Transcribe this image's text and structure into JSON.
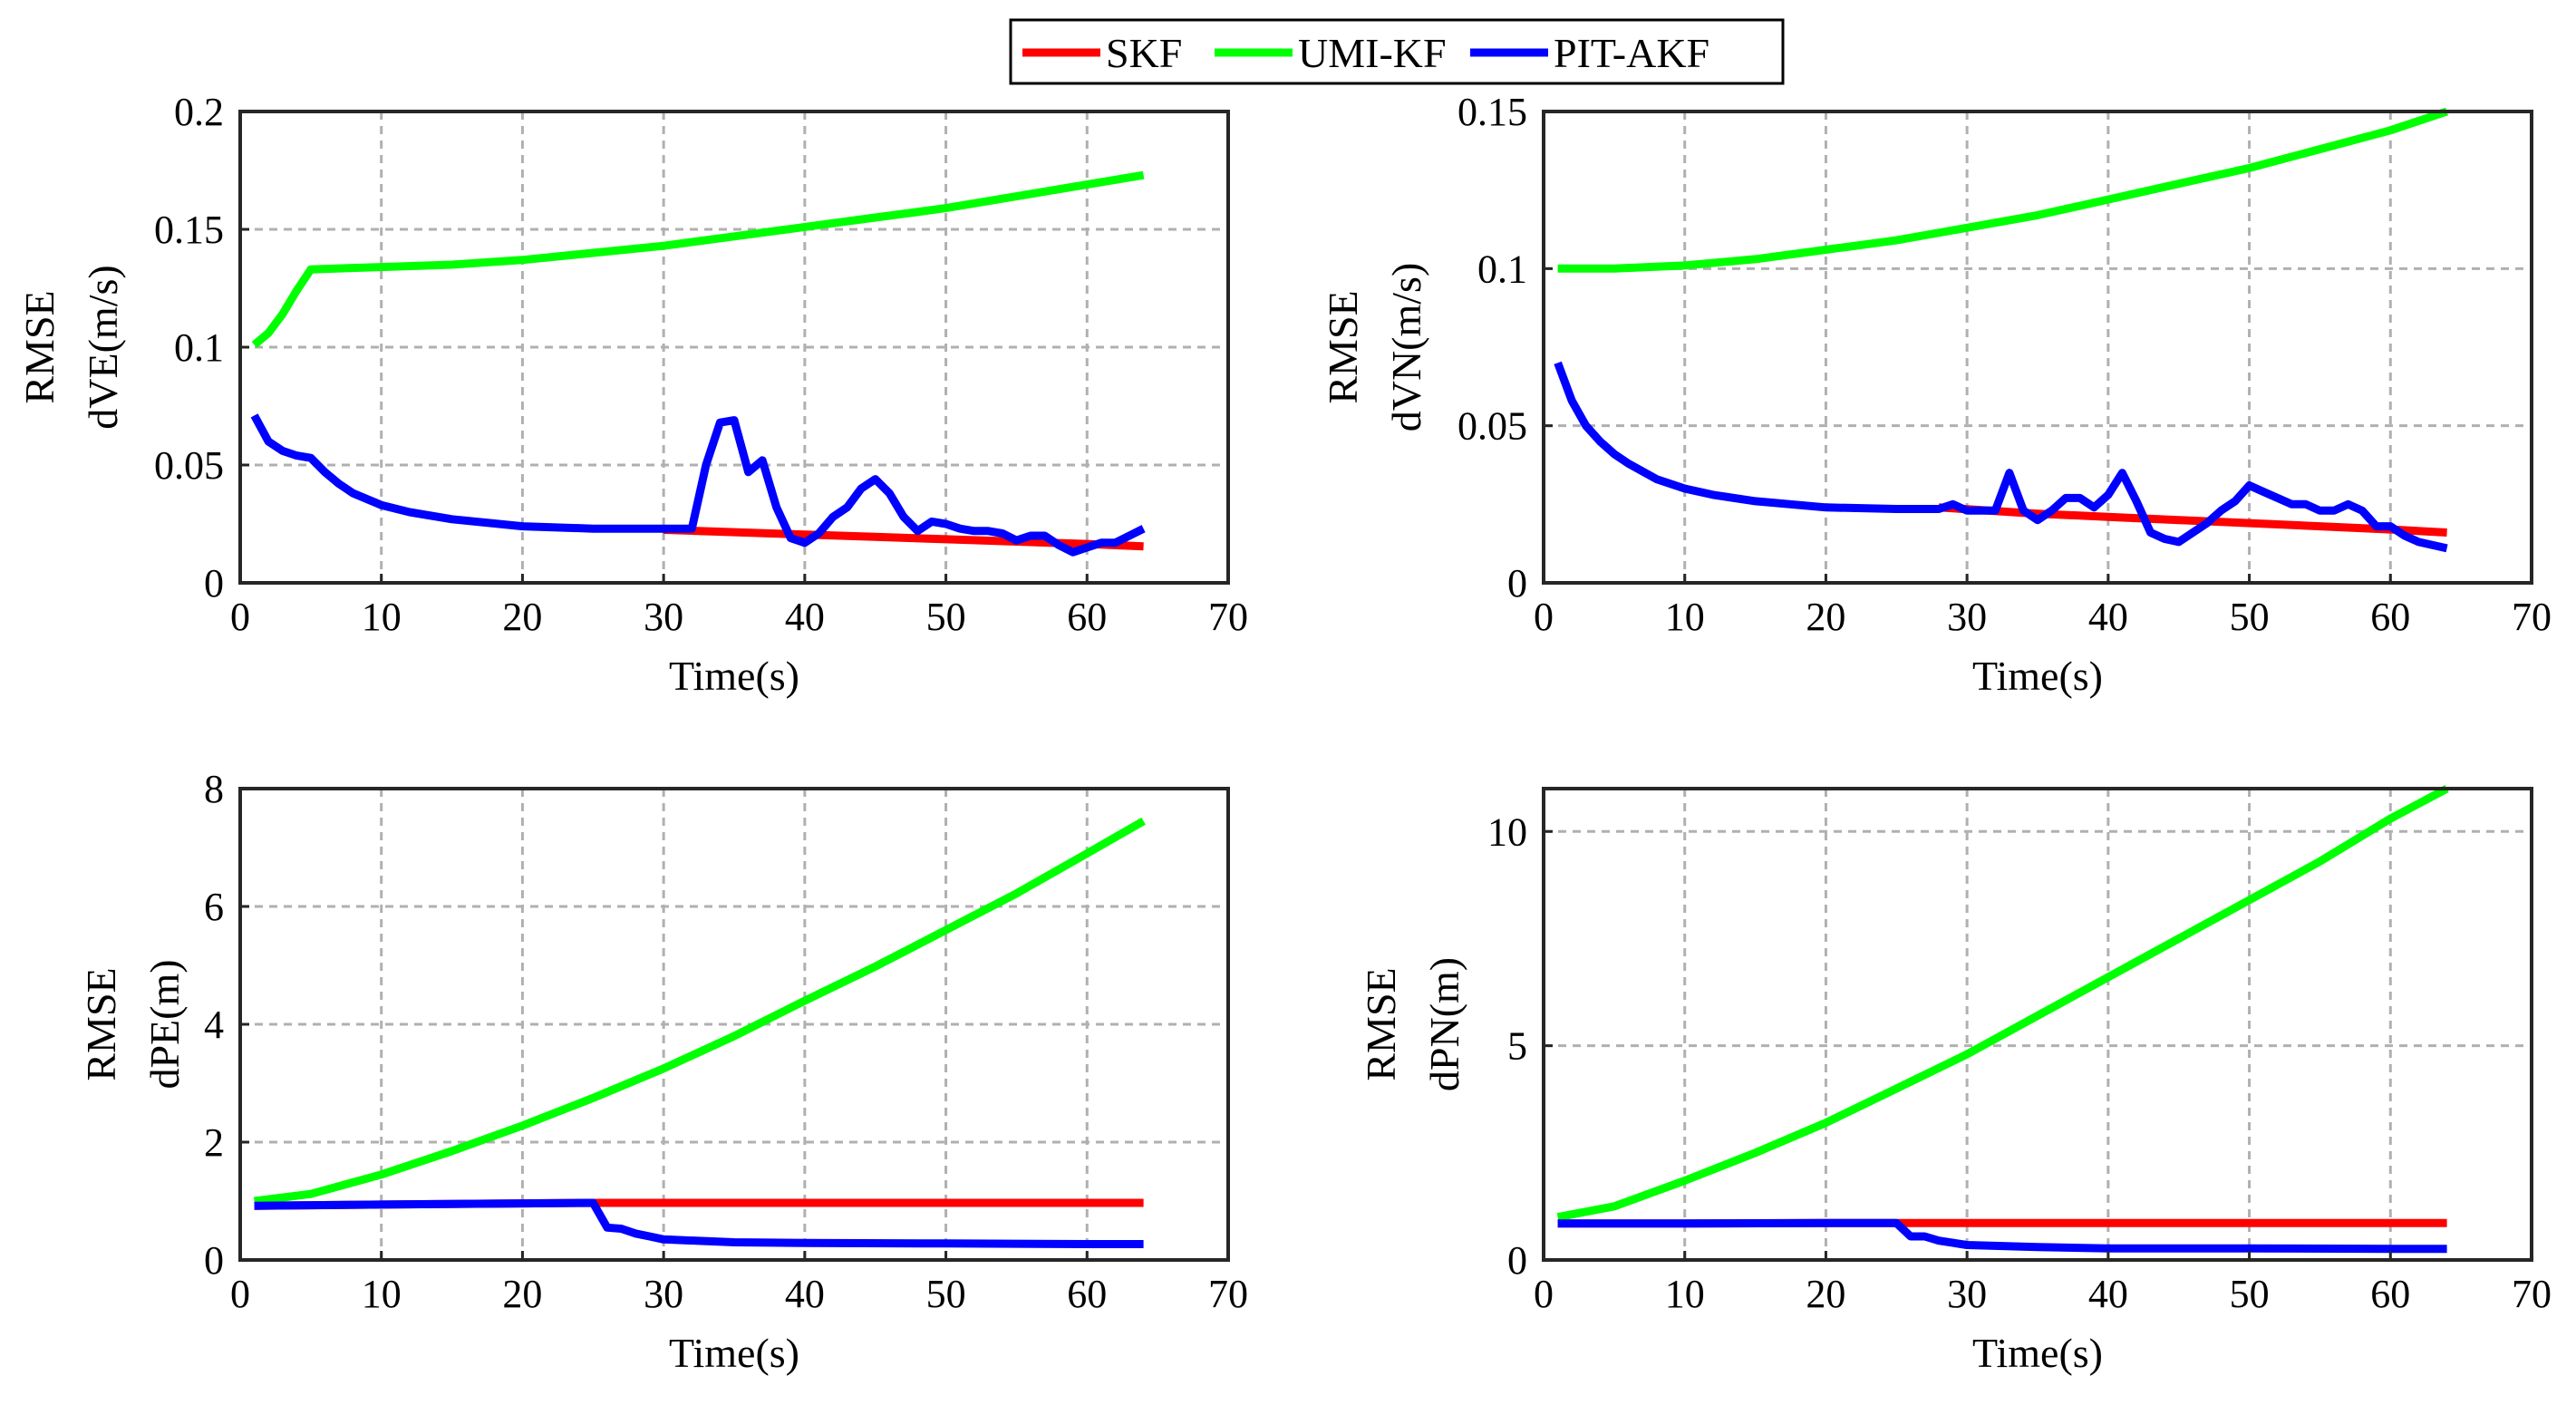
{
  "legend": {
    "entries": [
      {
        "name": "SKF",
        "color": "#ff0000"
      },
      {
        "name": "UMI-KF",
        "color": "#00ff00"
      },
      {
        "name": "PIT-AKF",
        "color": "#0000ff"
      }
    ]
  },
  "chart_data": [
    {
      "type": "line",
      "title": "",
      "xlabel": "Time(s)",
      "ylabel": [
        "RMSE",
        "dVE(m/s)"
      ],
      "xlim": [
        0,
        70
      ],
      "ylim": [
        0,
        0.2
      ],
      "xticks": [
        0,
        10,
        20,
        30,
        40,
        50,
        60,
        70
      ],
      "yticks": [
        0,
        0.05,
        0.1,
        0.15,
        0.2
      ],
      "xtick_labels": [
        "0",
        "10",
        "20",
        "30",
        "40",
        "50",
        "60",
        "70"
      ],
      "ytick_labels": [
        "0",
        "0.05",
        "0.1",
        "0.15",
        "0.2"
      ],
      "grid": true,
      "series": [
        {
          "name": "SKF",
          "color": "#ff0000",
          "x": [
            30,
            35,
            40,
            45,
            50,
            55,
            60,
            64
          ],
          "y": [
            0.0225,
            0.0215,
            0.0205,
            0.0195,
            0.0185,
            0.0175,
            0.0165,
            0.0155
          ]
        },
        {
          "name": "UMI-KF",
          "color": "#00ff00",
          "x": [
            1,
            2,
            3,
            4,
            5,
            10,
            15,
            20,
            25,
            30,
            35,
            40,
            45,
            50,
            55,
            60,
            64
          ],
          "y": [
            0.101,
            0.106,
            0.114,
            0.124,
            0.133,
            0.134,
            0.135,
            0.137,
            0.14,
            0.143,
            0.147,
            0.151,
            0.155,
            0.159,
            0.164,
            0.169,
            0.173
          ]
        },
        {
          "name": "PIT-AKF",
          "color": "#0000ff",
          "x": [
            1,
            2,
            3,
            4,
            5,
            6,
            7,
            8,
            10,
            12,
            15,
            20,
            25,
            30,
            32,
            33,
            34,
            35,
            36,
            37,
            38,
            39,
            40,
            41,
            42,
            43,
            44,
            45,
            46,
            47,
            48,
            49,
            50,
            51,
            52,
            53,
            54,
            55,
            56,
            57,
            58,
            59,
            60,
            61,
            62,
            63,
            64
          ],
          "y": [
            0.071,
            0.06,
            0.056,
            0.054,
            0.053,
            0.047,
            0.042,
            0.038,
            0.033,
            0.03,
            0.027,
            0.024,
            0.023,
            0.023,
            0.023,
            0.05,
            0.068,
            0.069,
            0.047,
            0.052,
            0.032,
            0.019,
            0.017,
            0.021,
            0.028,
            0.032,
            0.04,
            0.044,
            0.038,
            0.028,
            0.022,
            0.026,
            0.025,
            0.023,
            0.022,
            0.022,
            0.021,
            0.018,
            0.02,
            0.02,
            0.016,
            0.013,
            0.015,
            0.017,
            0.017,
            0.02,
            0.023
          ]
        }
      ]
    },
    {
      "type": "line",
      "title": "",
      "xlabel": "Time(s)",
      "ylabel": [
        "RMSE",
        "dVN(m/s)"
      ],
      "xlim": [
        0,
        70
      ],
      "ylim": [
        0,
        0.15
      ],
      "xticks": [
        0,
        10,
        20,
        30,
        40,
        50,
        60,
        70
      ],
      "yticks": [
        0,
        0.05,
        0.1,
        0.15
      ],
      "xtick_labels": [
        "0",
        "10",
        "20",
        "30",
        "40",
        "50",
        "60",
        "70"
      ],
      "ytick_labels": [
        "0",
        "0.05",
        "0.1",
        "0.15"
      ],
      "grid": true,
      "series": [
        {
          "name": "SKF",
          "color": "#ff0000",
          "x": [
            28,
            35,
            40,
            45,
            50,
            55,
            60,
            64
          ],
          "y": [
            0.024,
            0.022,
            0.021,
            0.02,
            0.019,
            0.018,
            0.017,
            0.016
          ]
        },
        {
          "name": "UMI-KF",
          "color": "#00ff00",
          "x": [
            1,
            5,
            10,
            15,
            20,
            25,
            30,
            35,
            40,
            45,
            50,
            55,
            60,
            64
          ],
          "y": [
            0.1,
            0.1,
            0.101,
            0.103,
            0.106,
            0.109,
            0.113,
            0.117,
            0.122,
            0.127,
            0.132,
            0.138,
            0.144,
            0.15
          ]
        },
        {
          "name": "PIT-AKF",
          "color": "#0000ff",
          "x": [
            1,
            2,
            3,
            4,
            5,
            6,
            8,
            10,
            12,
            15,
            20,
            25,
            28,
            29,
            30,
            32,
            33,
            34,
            35,
            36,
            37,
            38,
            39,
            40,
            41,
            42,
            43,
            44,
            45,
            46,
            47,
            48,
            49,
            50,
            51,
            52,
            53,
            54,
            55,
            56,
            57,
            58,
            59,
            60,
            61,
            62,
            63,
            64
          ],
          "y": [
            0.07,
            0.058,
            0.05,
            0.045,
            0.041,
            0.038,
            0.033,
            0.03,
            0.028,
            0.026,
            0.024,
            0.0235,
            0.0235,
            0.025,
            0.023,
            0.023,
            0.035,
            0.023,
            0.02,
            0.023,
            0.027,
            0.027,
            0.024,
            0.028,
            0.035,
            0.026,
            0.016,
            0.014,
            0.013,
            0.016,
            0.019,
            0.023,
            0.026,
            0.031,
            0.029,
            0.027,
            0.025,
            0.025,
            0.023,
            0.023,
            0.025,
            0.023,
            0.018,
            0.018,
            0.015,
            0.013,
            0.012,
            0.011
          ]
        }
      ]
    },
    {
      "type": "line",
      "title": "",
      "xlabel": "Time(s)",
      "ylabel": [
        "RMSE",
        "dPE(m)"
      ],
      "xlim": [
        0,
        70
      ],
      "ylim": [
        0,
        8
      ],
      "xticks": [
        0,
        10,
        20,
        30,
        40,
        50,
        60,
        70
      ],
      "yticks": [
        0,
        2,
        4,
        6,
        8
      ],
      "xtick_labels": [
        "0",
        "10",
        "20",
        "30",
        "40",
        "50",
        "60",
        "70"
      ],
      "ytick_labels": [
        "0",
        "2",
        "4",
        "6",
        "8"
      ],
      "grid": true,
      "series": [
        {
          "name": "SKF",
          "color": "#ff0000",
          "x": [
            1,
            10,
            20,
            25,
            30,
            40,
            50,
            60,
            64
          ],
          "y": [
            0.92,
            0.94,
            0.96,
            0.97,
            0.97,
            0.97,
            0.97,
            0.97,
            0.97
          ]
        },
        {
          "name": "UMI-KF",
          "color": "#00ff00",
          "x": [
            1,
            5,
            10,
            15,
            20,
            25,
            30,
            35,
            40,
            45,
            50,
            55,
            60,
            64
          ],
          "y": [
            1.0,
            1.12,
            1.45,
            1.85,
            2.28,
            2.75,
            3.25,
            3.8,
            4.4,
            4.98,
            5.6,
            6.22,
            6.9,
            7.45
          ]
        },
        {
          "name": "PIT-AKF",
          "color": "#0000ff",
          "x": [
            1,
            10,
            20,
            25,
            26,
            27,
            28,
            29,
            30,
            35,
            40,
            50,
            60,
            64
          ],
          "y": [
            0.92,
            0.94,
            0.96,
            0.97,
            0.55,
            0.53,
            0.45,
            0.4,
            0.35,
            0.3,
            0.29,
            0.28,
            0.27,
            0.27
          ]
        }
      ]
    },
    {
      "type": "line",
      "title": "",
      "xlabel": "Time(s)",
      "ylabel": [
        "RMSE",
        "dPN(m)"
      ],
      "xlim": [
        0,
        70
      ],
      "ylim": [
        0,
        11
      ],
      "xticks": [
        0,
        10,
        20,
        30,
        40,
        50,
        60,
        70
      ],
      "yticks": [
        0,
        5,
        10
      ],
      "xtick_labels": [
        "0",
        "10",
        "20",
        "30",
        "40",
        "50",
        "60",
        "70"
      ],
      "ytick_labels": [
        "0",
        "5",
        "10"
      ],
      "grid": true,
      "series": [
        {
          "name": "SKF",
          "color": "#ff0000",
          "x": [
            1,
            10,
            20,
            25,
            30,
            40,
            50,
            60,
            64
          ],
          "y": [
            0.85,
            0.85,
            0.86,
            0.86,
            0.86,
            0.86,
            0.86,
            0.86,
            0.86
          ]
        },
        {
          "name": "UMI-KF",
          "color": "#00ff00",
          "x": [
            1,
            5,
            10,
            15,
            20,
            25,
            30,
            35,
            40,
            45,
            50,
            55,
            60,
            64
          ],
          "y": [
            1.0,
            1.25,
            1.85,
            2.5,
            3.2,
            4.0,
            4.8,
            5.7,
            6.6,
            7.5,
            8.4,
            9.3,
            10.3,
            11.0
          ]
        },
        {
          "name": "PIT-AKF",
          "color": "#0000ff",
          "x": [
            1,
            10,
            20,
            25,
            26,
            27,
            28,
            29,
            30,
            35,
            40,
            50,
            60,
            64
          ],
          "y": [
            0.85,
            0.85,
            0.86,
            0.86,
            0.55,
            0.55,
            0.45,
            0.4,
            0.35,
            0.3,
            0.27,
            0.27,
            0.26,
            0.26
          ]
        }
      ]
    }
  ]
}
